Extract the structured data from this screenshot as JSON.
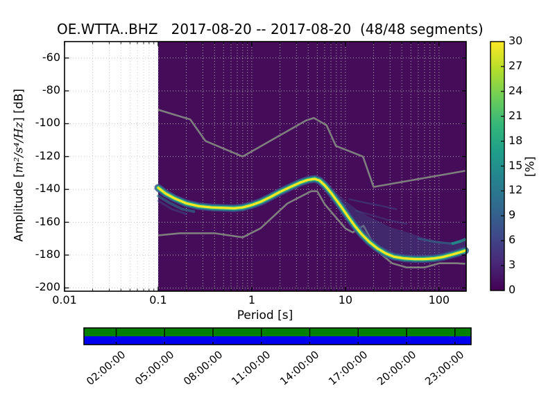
{
  "title": "OE.WTTA..BHZ   2017-08-20 -- 2017-08-20  (48/48 segments)",
  "station": "OE.WTTA..BHZ",
  "date_range": "2017-08-20 -- 2017-08-20",
  "segments": "48/48 segments",
  "labels": {
    "ylabel_prefix": "Amplitude [",
    "ylabel_math": "m²/s⁴/Hz",
    "ylabel_suffix": "] [dB]",
    "xlabel": "Period [s]",
    "colorbar_label": "[%]"
  },
  "chart_data": {
    "type": "heatmap",
    "title": "OE.WTTA..BHZ   2017-08-20 -- 2017-08-20  (48/48 segments)",
    "xlabel": "Period [s]",
    "ylabel": "Amplitude [m²/s⁴/Hz] [dB]",
    "colorbar_label": "[%]",
    "xscale": "log",
    "xlim": [
      0.01,
      195
    ],
    "ylim": [
      -202,
      -50
    ],
    "x_ticks": [
      0.01,
      0.1,
      1,
      10,
      100
    ],
    "x_tick_labels": [
      "0.01",
      "0.1",
      "1",
      "10",
      "100"
    ],
    "y_ticks": [
      -60,
      -80,
      -100,
      -120,
      -140,
      -160,
      -180,
      -200
    ],
    "grid": true,
    "grid_color": "#c4c0c8",
    "data_start_period": 0.1,
    "background_value_color": "#450d59",
    "noise_model_color": "#7f7f7f",
    "colorbar": {
      "min": 0,
      "max": 30,
      "tick_step": 3,
      "ticks": [
        0,
        3,
        6,
        9,
        12,
        15,
        18,
        21,
        24,
        27,
        30
      ],
      "colors": [
        "#440154",
        "#482878",
        "#3e4a89",
        "#31688e",
        "#26828e",
        "#1f9e89",
        "#35b779",
        "#6ece58",
        "#b5de2b",
        "#fde725"
      ]
    },
    "mode_curve": [
      [
        0.1,
        -139
      ],
      [
        0.12,
        -142.5
      ],
      [
        0.15,
        -145.5
      ],
      [
        0.2,
        -148.5
      ],
      [
        0.27,
        -150.2
      ],
      [
        0.37,
        -151
      ],
      [
        0.5,
        -151.3
      ],
      [
        0.65,
        -151.5
      ],
      [
        0.8,
        -151
      ],
      [
        1.0,
        -149.5
      ],
      [
        1.25,
        -147.5
      ],
      [
        1.6,
        -144.5
      ],
      [
        2.0,
        -141.5
      ],
      [
        2.6,
        -138.5
      ],
      [
        3.3,
        -135.8
      ],
      [
        4.0,
        -134.2
      ],
      [
        4.7,
        -133.6
      ],
      [
        5.3,
        -134.6
      ],
      [
        6.0,
        -137.5
      ],
      [
        7.0,
        -142
      ],
      [
        8.0,
        -146.5
      ],
      [
        9.0,
        -150.5
      ],
      [
        10.5,
        -156
      ],
      [
        12.5,
        -162
      ],
      [
        15,
        -167.5
      ],
      [
        18,
        -172
      ],
      [
        22,
        -176
      ],
      [
        27,
        -179
      ],
      [
        33,
        -181
      ],
      [
        42,
        -182
      ],
      [
        55,
        -182.4
      ],
      [
        70,
        -182.4
      ],
      [
        90,
        -182
      ],
      [
        110,
        -181.2
      ],
      [
        140,
        -179.6
      ],
      [
        170,
        -178.2
      ],
      [
        190,
        -177.3
      ]
    ],
    "curve_layers": [
      {
        "color": "#3b528b",
        "width": 11,
        "opacity": 0.8
      },
      {
        "color": "#2a788e",
        "width": 8,
        "opacity": 0.95
      },
      {
        "color": "#35b779",
        "width": 5.5,
        "opacity": 1
      },
      {
        "color": "#fde725",
        "width": 3.2,
        "opacity": 1
      }
    ],
    "noise_model_high": [
      [
        0.1,
        -91.5
      ],
      [
        0.22,
        -97.4
      ],
      [
        0.32,
        -110.5
      ],
      [
        0.8,
        -120
      ],
      [
        3.8,
        -98
      ],
      [
        4.6,
        -96.5
      ],
      [
        6.3,
        -101
      ],
      [
        7.9,
        -113.5
      ],
      [
        15.4,
        -120
      ],
      [
        20,
        -138.5
      ],
      [
        190,
        -128.7
      ]
    ],
    "noise_model_low": [
      [
        0.1,
        -168
      ],
      [
        0.17,
        -166.7
      ],
      [
        0.4,
        -166.7
      ],
      [
        0.8,
        -169.2
      ],
      [
        1.24,
        -163.7
      ],
      [
        2.4,
        -148.6
      ],
      [
        4.3,
        -141.1
      ],
      [
        5.0,
        -141.1
      ],
      [
        6.0,
        -149
      ],
      [
        10,
        -163.8
      ],
      [
        12,
        -166.2
      ],
      [
        15.6,
        -162.1
      ],
      [
        21.9,
        -177.5
      ],
      [
        31.6,
        -185
      ],
      [
        45,
        -187.5
      ],
      [
        70,
        -187.5
      ],
      [
        101,
        -185
      ],
      [
        154,
        -185
      ],
      [
        190,
        -185.3
      ]
    ],
    "spread_band": {
      "color": "#3b528b",
      "opacity": 0.4,
      "start_period": 8,
      "upper": [
        [
          8,
          -142
        ],
        [
          10,
          -147
        ],
        [
          13,
          -152
        ],
        [
          17,
          -156
        ],
        [
          22,
          -159
        ],
        [
          30,
          -163
        ],
        [
          45,
          -166
        ],
        [
          65,
          -169
        ],
        [
          90,
          -171
        ],
        [
          120,
          -172
        ],
        [
          160,
          -172
        ],
        [
          190,
          -171
        ]
      ]
    },
    "streaks": [
      {
        "color": "#3b528b",
        "width": 2.5,
        "opacity": 0.45,
        "points": [
          [
            11,
            -146
          ],
          [
            16,
            -148
          ],
          [
            24,
            -150
          ],
          [
            35,
            -152
          ]
        ]
      },
      {
        "color": "#3b528b",
        "width": 2.5,
        "opacity": 0.4,
        "points": [
          [
            13,
            -153
          ],
          [
            20,
            -156
          ],
          [
            30,
            -159
          ],
          [
            45,
            -161
          ]
        ]
      },
      {
        "color": "#2a788e",
        "width": 3,
        "opacity": 0.5,
        "points": [
          [
            60,
            -170
          ],
          [
            90,
            -172
          ],
          [
            130,
            -173
          ],
          [
            170,
            -172
          ]
        ]
      },
      {
        "color": "#21918c",
        "width": 4,
        "opacity": 0.8,
        "points": [
          [
            140,
            -173
          ],
          [
            170,
            -171.5
          ],
          [
            190,
            -170.5
          ]
        ]
      },
      {
        "color": "#2a788e",
        "width": 4,
        "opacity": 0.6,
        "points": [
          [
            0.1,
            -144
          ],
          [
            0.13,
            -148
          ],
          [
            0.18,
            -152
          ],
          [
            0.24,
            -153.5
          ]
        ]
      },
      {
        "color": "#3b528b",
        "width": 3,
        "opacity": 0.45,
        "points": [
          [
            0.1,
            -147
          ],
          [
            0.14,
            -152
          ],
          [
            0.2,
            -155
          ]
        ]
      }
    ],
    "time_axis": {
      "total_hours": 24,
      "hours": [
        2,
        5,
        8,
        11,
        14,
        17,
        20,
        23
      ],
      "labels": [
        "02:00:00",
        "05:00:00",
        "08:00:00",
        "11:00:00",
        "14:00:00",
        "17:00:00",
        "20:00:00",
        "23:00:00"
      ],
      "bar_top_color": "#008000",
      "bar_bottom_color": "#0000ee"
    }
  }
}
